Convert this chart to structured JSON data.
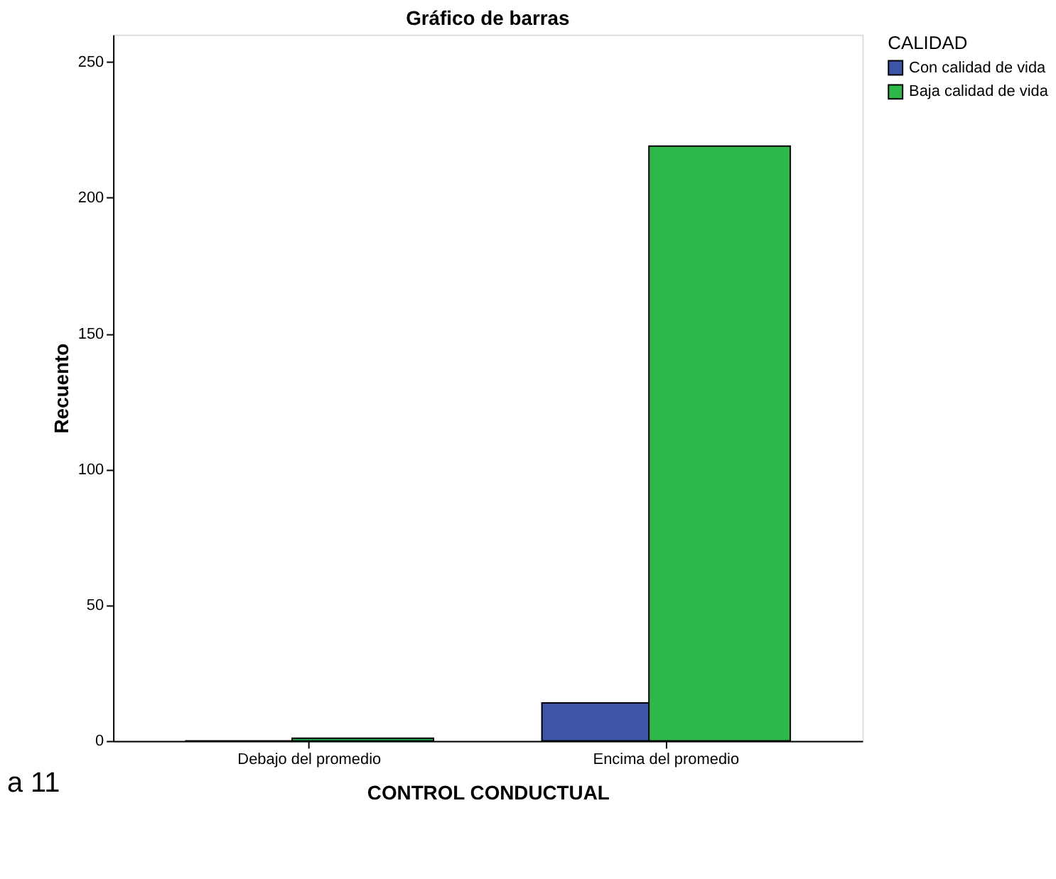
{
  "chart_data": {
    "type": "bar",
    "title": "Gráfico de barras",
    "xlabel": "CONTROL CONDUCTUAL",
    "ylabel": "Recuento",
    "legend_title": "CALIDAD",
    "categories": [
      "Debajo del promedio",
      "Encima del promedio"
    ],
    "series": [
      {
        "name": "Con calidad de vida",
        "color": "#3c55a8",
        "values": [
          0,
          14
        ]
      },
      {
        "name": "Baja calidad de vida",
        "color": "#2fb84a",
        "values": [
          1,
          219
        ]
      }
    ],
    "ylim": [
      0,
      260
    ],
    "yticks": [
      0,
      50,
      100,
      150,
      200,
      250
    ],
    "grid": false,
    "legend": "top right",
    "annotations": [
      "a 11"
    ]
  }
}
